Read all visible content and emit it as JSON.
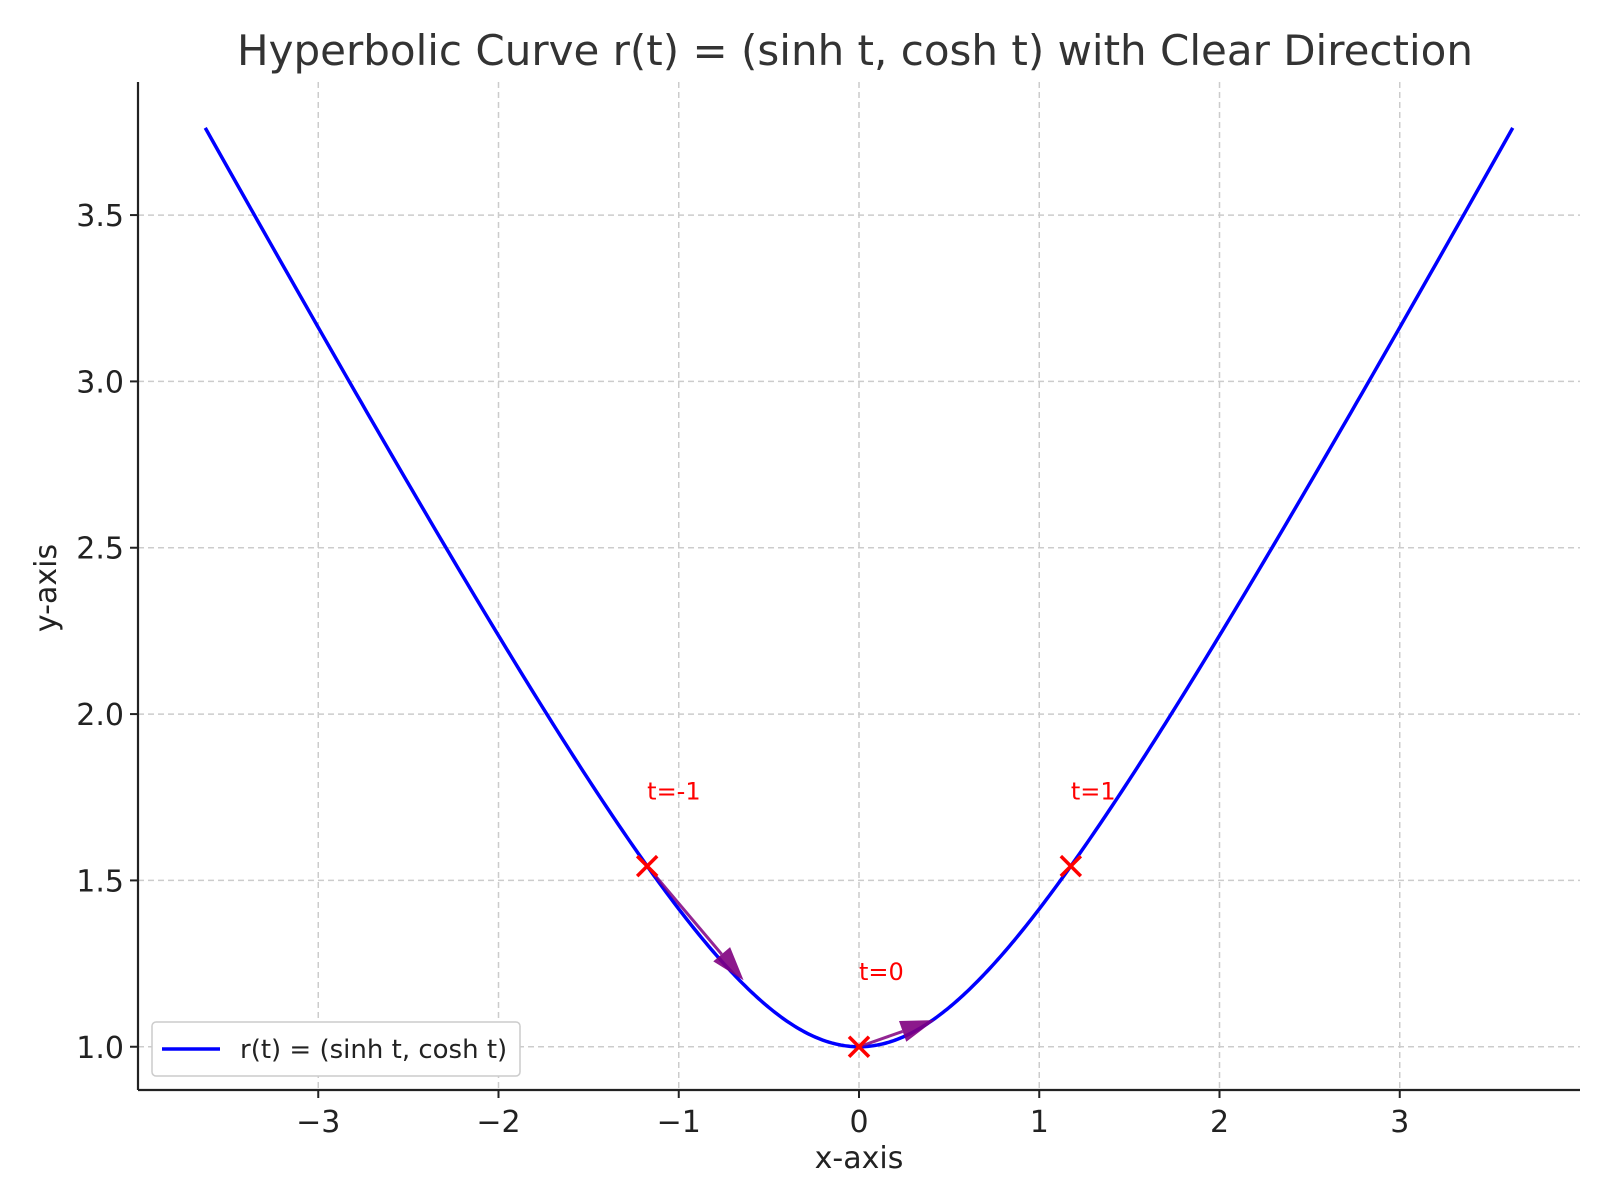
{
  "chart_data": {
    "type": "line",
    "title": "Hyperbolic Curve r(t) = (sinh t, cosh t) with Clear Direction",
    "xlabel": "x-axis",
    "ylabel": "y-axis",
    "xlim": [
      -4.0,
      4.0
    ],
    "ylim": [
      0.87,
      3.9
    ],
    "xticks": [
      -3,
      -2,
      -1,
      0,
      1,
      2,
      3
    ],
    "xtick_labels": [
      "−3",
      "−2",
      "−1",
      "0",
      "1",
      "2",
      "3"
    ],
    "yticks": [
      1.0,
      1.5,
      2.0,
      2.5,
      3.0,
      3.5
    ],
    "ytick_labels": [
      "1.0",
      "1.5",
      "2.0",
      "2.5",
      "3.0",
      "3.5"
    ],
    "grid": true,
    "legend_position": "lower-left",
    "series": [
      {
        "name": "r(t) = (sinh t, cosh t)",
        "color": "#0000ff",
        "function": "x = sinh(t), y = cosh(t)",
        "t_range": [
          -2.0,
          2.0
        ]
      }
    ],
    "markers": [
      {
        "label": "t=-1",
        "t": -1,
        "x": -1.1752,
        "y": 1.5431
      },
      {
        "label": "t=0",
        "t": 0,
        "x": 0.0,
        "y": 1.0
      },
      {
        "label": "t=1",
        "t": 1,
        "x": 1.1752,
        "y": 1.5431
      }
    ],
    "marker_color": "#ff0000",
    "direction_arrows": [
      {
        "from": [
          -1.1752,
          1.5431
        ],
        "to": [
          -0.64,
          1.2
        ]
      },
      {
        "from": [
          0.0,
          1.0
        ],
        "to": [
          0.42,
          1.08
        ]
      }
    ],
    "arrow_color": "#800080"
  }
}
